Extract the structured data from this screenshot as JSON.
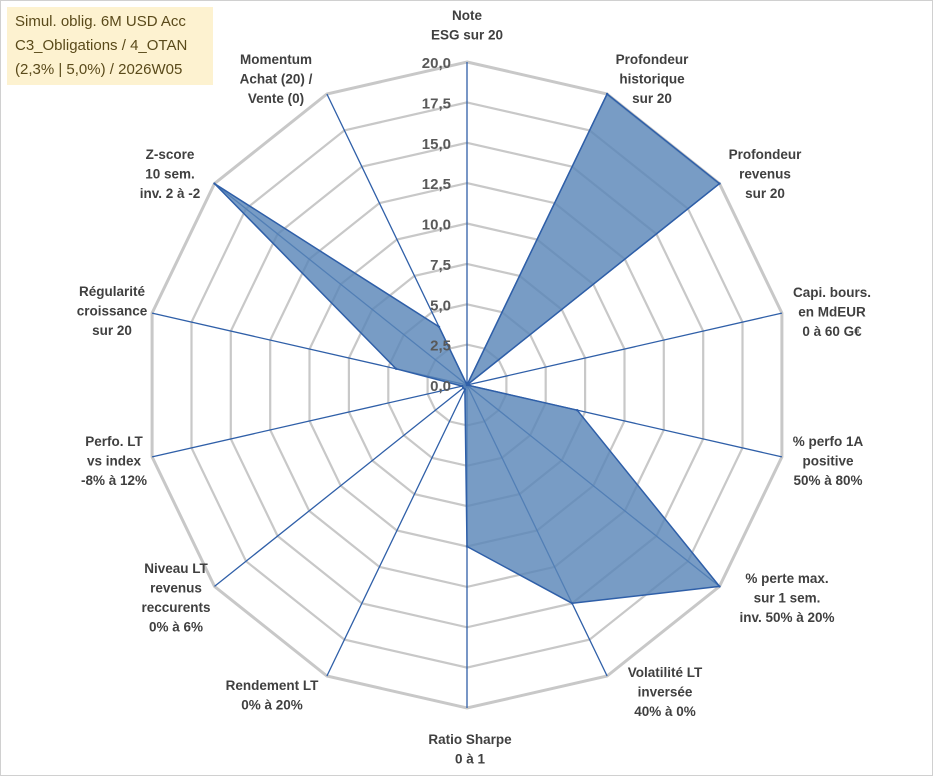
{
  "info_box": {
    "lines": [
      "Simul. oblig. 6M USD Acc",
      "C3_Obligations / 4_OTAN",
      "(2,3% | 5,0%) / 2026W05"
    ]
  },
  "colors": {
    "grid": "#c8c8c8",
    "spoke": "#2f5fa8",
    "fill": "#5a86b8",
    "stroke": "#2f5fa8",
    "info_bg": "#fdf2d0"
  },
  "chart_data": {
    "type": "radar",
    "title": "",
    "rmax": 20,
    "rlim": [
      0,
      20
    ],
    "grid": true,
    "tick_labels": [
      "0,0",
      "2,5",
      "5,0",
      "7,5",
      "10,0",
      "12,5",
      "15,0",
      "17,5",
      "20,0"
    ],
    "axes": [
      {
        "label": [
          "Note",
          "ESG sur 20"
        ]
      },
      {
        "label": [
          "Profondeur",
          "historique",
          "sur 20"
        ]
      },
      {
        "label": [
          "Profondeur",
          "revenus",
          "sur 20"
        ]
      },
      {
        "label": [
          "Capi. bours.",
          "en MdEUR",
          "0 à 60 G€"
        ]
      },
      {
        "label": [
          "% perfo 1A",
          "positive",
          "50% à 80%"
        ]
      },
      {
        "label": [
          "% perte max.",
          "sur 1 sem.",
          "inv. 50% à 20%"
        ]
      },
      {
        "label": [
          "Volatilité LT",
          "inversée",
          "40% à 0%"
        ]
      },
      {
        "label": [
          "Ratio Sharpe",
          "0 à 1"
        ]
      },
      {
        "label": [
          "Rendement LT",
          "0% à 20%"
        ]
      },
      {
        "label": [
          "Niveau LT",
          "revenus",
          "reccurents",
          "0% à 6%"
        ]
      },
      {
        "label": [
          "Perfo. LT",
          "vs index",
          "-8% à 12%"
        ]
      },
      {
        "label": [
          "Régularité",
          "croissance",
          "sur 20"
        ]
      },
      {
        "label": [
          "Z-score",
          "10 sem.",
          "inv. 2 à -2"
        ]
      },
      {
        "label": [
          "Momentum",
          "Achat (20) /",
          "Vente (0)"
        ]
      }
    ],
    "series": [
      {
        "values": [
          0,
          20,
          20,
          0,
          7,
          20,
          15,
          10,
          0.3,
          0.3,
          0.3,
          4.5,
          20,
          4
        ]
      }
    ]
  }
}
